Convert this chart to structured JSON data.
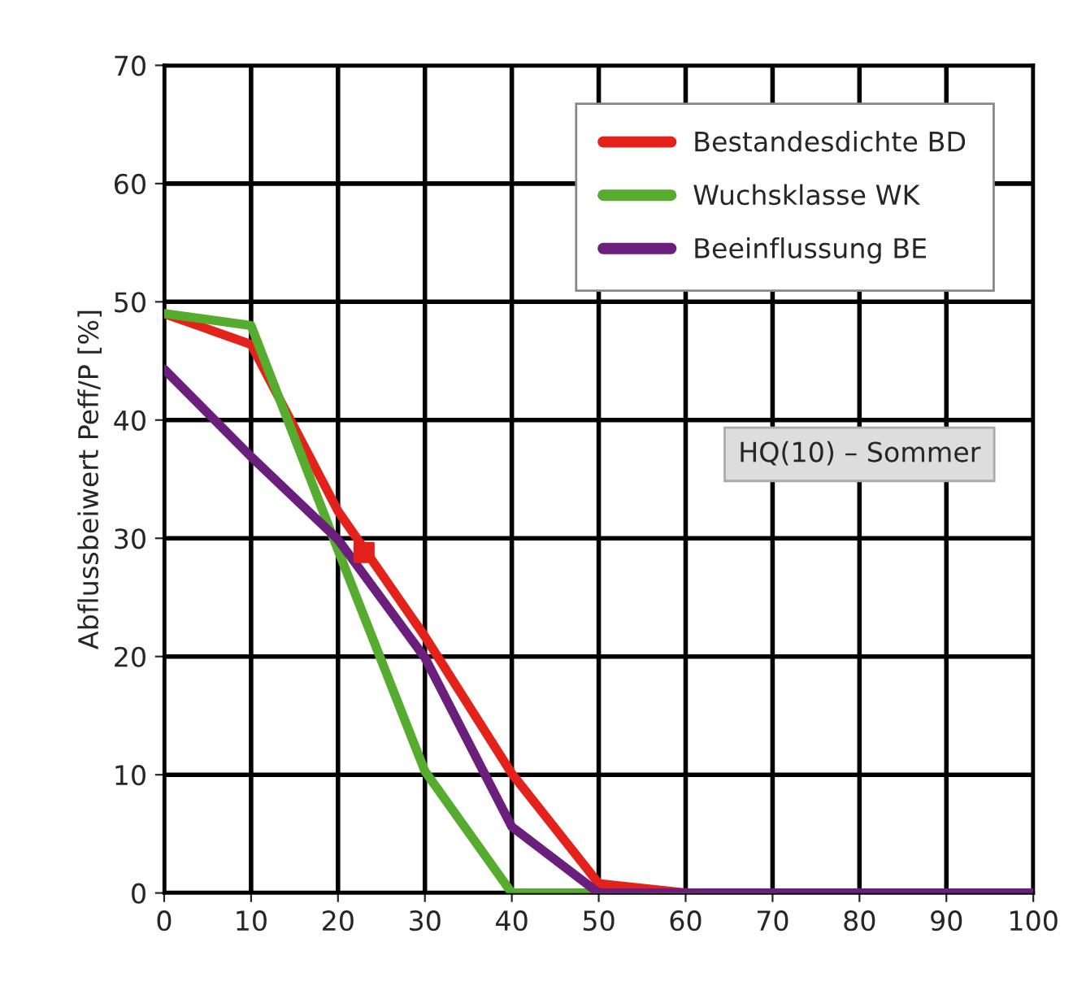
{
  "chart_data": {
    "type": "line",
    "ylabel": "Abflussbeiwert Peff/P [%]",
    "x": [
      0,
      10,
      20,
      30,
      40,
      50,
      60,
      70,
      80,
      90,
      100
    ],
    "series": [
      {
        "name": "Bestandesdichte BD",
        "color": "#e3221b",
        "values": [
          49,
          46.4,
          32.3,
          21.7,
          10.1,
          0.8,
          0,
          0,
          null,
          null,
          null
        ]
      },
      {
        "name": "Wuchsklasse WK",
        "color": "#56ac2e",
        "values": [
          49,
          48,
          29,
          10.3,
          0,
          0,
          0,
          null,
          null,
          null,
          null
        ]
      },
      {
        "name": "Beeinflussung BE",
        "color": "#6a1f7c",
        "values": [
          44.3,
          36.9,
          29.9,
          19.9,
          5.6,
          0,
          0,
          0,
          0,
          0,
          0
        ]
      },
      {
        "type": "scatter",
        "color": "#e3221b",
        "x": [
          23
        ],
        "values": [
          28.8
        ],
        "marker": "square"
      }
    ],
    "xlim": [
      0,
      100
    ],
    "xticks": [
      0,
      10,
      20,
      30,
      40,
      50,
      60,
      70,
      80,
      90,
      100
    ],
    "ylim": [
      0,
      70
    ],
    "yticks": [
      0,
      10,
      20,
      30,
      40,
      50,
      60,
      70
    ],
    "grid": true,
    "legend": "top right",
    "annotations": [
      "HQ(10) – Sommer"
    ]
  }
}
